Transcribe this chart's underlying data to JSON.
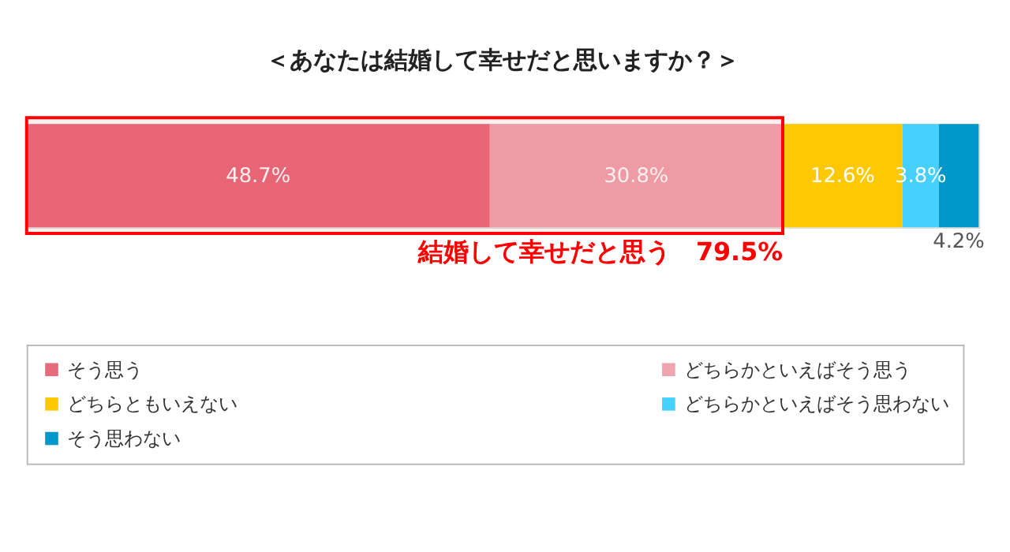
{
  "chart_data": {
    "type": "bar",
    "title": "＜あなたは結婚して幸せだと思いますか？＞",
    "orientation": "horizontal",
    "stacked": true,
    "categories": [
      null
    ],
    "legend": "bottom",
    "series": [
      {
        "name": "そう思う",
        "color": "#e66c7d",
        "values": [
          48.7
        ],
        "value_labels": [
          "48.7%"
        ]
      },
      {
        "name": "どちらかといえばそう思う",
        "color": "#efa5b0",
        "values": [
          30.8
        ],
        "value_labels": [
          "30.8%"
        ]
      },
      {
        "name": "どちらともいえない",
        "color": "#ffc800",
        "values": [
          12.6
        ],
        "value_labels": [
          "12.6%"
        ]
      },
      {
        "name": "どちらかといえばそう思わない",
        "color": "#45d0fd",
        "values": [
          3.8
        ],
        "value_labels": [
          "3.8%"
        ]
      },
      {
        "name": "そう思わない",
        "color": "#0097c9",
        "values": [
          4.2
        ],
        "value_labels": [
          "4.2%"
        ]
      }
    ],
    "bands": [
      {
        "axis": "x",
        "from": 0,
        "to": 79.5,
        "label": "結婚して幸せだと思う　79.5%",
        "color": "#ff0000"
      }
    ]
  }
}
